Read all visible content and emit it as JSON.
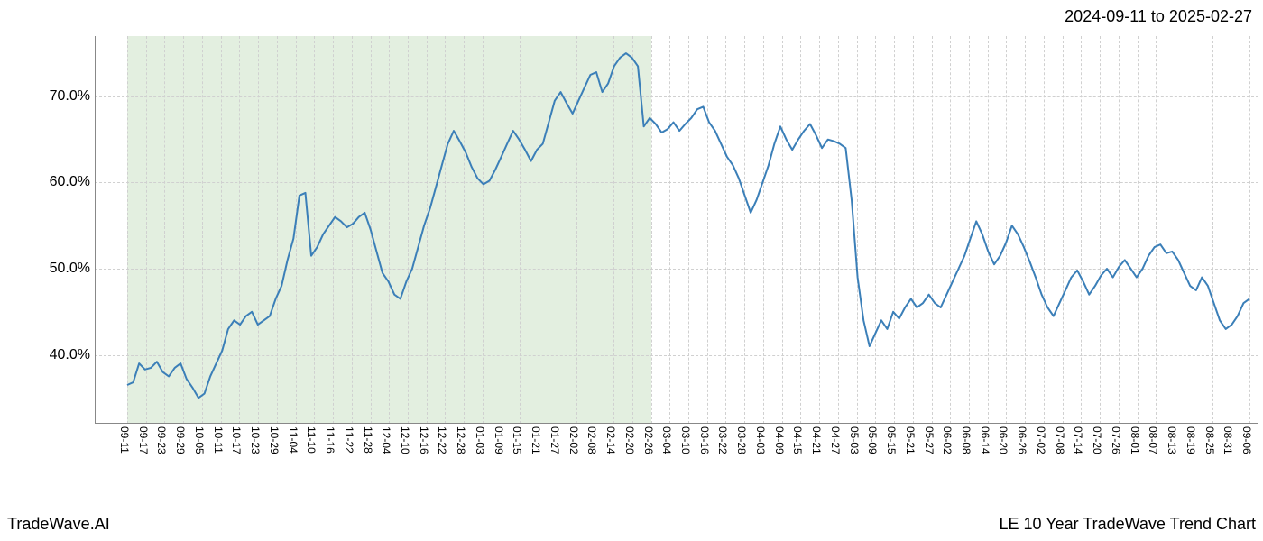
{
  "date_range": "2024-09-11 to 2025-02-27",
  "footer_left": "TradeWave.AI",
  "footer_right": "LE 10 Year TradeWave Trend Chart",
  "chart": {
    "type": "line",
    "background_color": "#ffffff",
    "grid_color": "#d0d0d0",
    "axis_color": "#888888",
    "line_color": "#3b7fb8",
    "line_width": 2,
    "shaded_color": "#e3efe0",
    "shaded_start_index": 0,
    "shaded_end_index": 28,
    "ylim": [
      32,
      77
    ],
    "y_ticks": [
      40.0,
      50.0,
      60.0,
      70.0
    ],
    "y_tick_labels": [
      "40.0%",
      "50.0%",
      "60.0%",
      "70.0%"
    ],
    "label_fontsize": 16,
    "title_fontsize": 18,
    "x_labels": [
      "09-11",
      "09-17",
      "09-23",
      "09-29",
      "10-05",
      "10-11",
      "10-17",
      "10-23",
      "10-29",
      "11-04",
      "11-10",
      "11-16",
      "11-22",
      "11-28",
      "12-04",
      "12-10",
      "12-16",
      "12-22",
      "12-28",
      "01-03",
      "01-09",
      "01-15",
      "01-21",
      "01-27",
      "02-02",
      "02-08",
      "02-14",
      "02-20",
      "02-26",
      "03-04",
      "03-10",
      "03-16",
      "03-22",
      "03-28",
      "04-03",
      "04-09",
      "04-15",
      "04-21",
      "04-27",
      "05-03",
      "05-09",
      "05-15",
      "05-21",
      "05-27",
      "06-02",
      "06-08",
      "06-14",
      "06-20",
      "06-26",
      "07-02",
      "07-08",
      "07-14",
      "07-20",
      "07-26",
      "08-01",
      "08-07",
      "08-13",
      "08-19",
      "08-25",
      "08-31",
      "09-06"
    ],
    "values": [
      36.5,
      36.8,
      39.0,
      38.3,
      38.5,
      39.2,
      38.0,
      37.5,
      38.5,
      39.0,
      37.2,
      36.2,
      35.0,
      35.5,
      37.5,
      39.0,
      40.5,
      43.0,
      44.0,
      43.5,
      44.5,
      45.0,
      43.5,
      44.0,
      44.5,
      46.5,
      48.0,
      51.0,
      53.5,
      58.5,
      58.8,
      51.5,
      52.5,
      54.0,
      55.0,
      56.0,
      55.5,
      54.8,
      55.2,
      56.0,
      56.5,
      54.5,
      52.0,
      49.5,
      48.5,
      47.0,
      46.5,
      48.5,
      50.0,
      52.5,
      55.0,
      57.0,
      59.5,
      62.0,
      64.5,
      66.0,
      64.8,
      63.5,
      61.8,
      60.5,
      59.8,
      60.2,
      61.5,
      63.0,
      64.5,
      66.0,
      65.0,
      63.8,
      62.5,
      63.8,
      64.5,
      67.0,
      69.5,
      70.5,
      69.2,
      68.0,
      69.5,
      71.0,
      72.5,
      72.8,
      70.5,
      71.5,
      73.5,
      74.5,
      75.0,
      74.5,
      73.5,
      66.5,
      67.5,
      66.8,
      65.8,
      66.2,
      67.0,
      66.0,
      66.8,
      67.5,
      68.5,
      68.8,
      67.0,
      66.0,
      64.5,
      63.0,
      62.0,
      60.5,
      58.5,
      56.5,
      58.0,
      60.0,
      62.0,
      64.5,
      66.5,
      65.0,
      63.8,
      65.0,
      66.0,
      66.8,
      65.5,
      64.0,
      65.0,
      64.8,
      64.5,
      64.0,
      58.0,
      49.0,
      44.0,
      41.0,
      42.5,
      44.0,
      43.0,
      45.0,
      44.2,
      45.5,
      46.5,
      45.5,
      46.0,
      47.0,
      46.0,
      45.5,
      47.0,
      48.5,
      50.0,
      51.5,
      53.5,
      55.5,
      54.0,
      52.0,
      50.5,
      51.5,
      53.0,
      55.0,
      54.0,
      52.5,
      50.8,
      49.0,
      47.0,
      45.5,
      44.5,
      46.0,
      47.5,
      49.0,
      49.8,
      48.5,
      47.0,
      48.0,
      49.2,
      50.0,
      49.0,
      50.2,
      51.0,
      50.0,
      49.0,
      50.0,
      51.5,
      52.5,
      52.8,
      51.8,
      52.0,
      51.0,
      49.5,
      48.0,
      47.5,
      49.0,
      48.0,
      46.0,
      44.0,
      43.0,
      43.5,
      44.5,
      46.0,
      46.5
    ]
  }
}
